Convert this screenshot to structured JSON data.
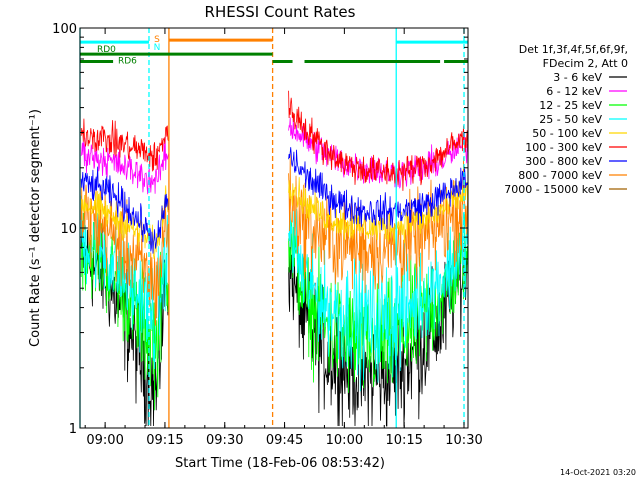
{
  "chart_data": {
    "type": "line",
    "title": "RHESSI Count Rates",
    "xlabel": "Start Time (18-Feb-06 08:53:42)",
    "ylabel": "Count Rate (s⁻¹ detector segment⁻¹)",
    "y_scale": "log",
    "ylim": [
      1,
      100
    ],
    "y_ticks": [
      "1",
      "10",
      "100"
    ],
    "xlim": [
      "08:53:42",
      "10:31:00"
    ],
    "x_ticks": [
      "09:00",
      "09:15",
      "09:30",
      "09:45",
      "10:00",
      "10:15",
      "10:30"
    ],
    "grid": false,
    "legend_position": "top-right outside plot",
    "legend_header": [
      "Det 1f,3f,4f,5f,6f,9f,",
      "FDecim 2, Att 0"
    ],
    "data_gap": [
      "09:16",
      "09:46"
    ],
    "series": [
      {
        "name": "3 - 6 keV",
        "color": "#000000",
        "x": [
          "08:54",
          "09:00",
          "09:05",
          "09:10",
          "09:13",
          "09:15",
          "09:46",
          "09:50",
          "09:55",
          "10:00",
          "10:05",
          "10:10",
          "10:15",
          "10:20",
          "10:25",
          "10:30"
        ],
        "y": [
          7.5,
          5.5,
          3.6,
          2.0,
          1.5,
          5.0,
          6.5,
          3.3,
          2.4,
          2.0,
          1.8,
          1.8,
          2.1,
          2.6,
          3.6,
          6.0
        ]
      },
      {
        "name": "6 - 12 keV",
        "color": "#ff00ff",
        "x": [
          "08:54",
          "09:00",
          "09:05",
          "09:10",
          "09:13",
          "09:15",
          "09:46",
          "09:50",
          "09:55",
          "10:00",
          "10:05",
          "10:10",
          "10:15",
          "10:20",
          "10:25",
          "10:30"
        ],
        "y": [
          24,
          22,
          20,
          18,
          17,
          23,
          33,
          28,
          24,
          21,
          20,
          19,
          19,
          20,
          22,
          26
        ]
      },
      {
        "name": "12 - 25 keV",
        "color": "#00ff00",
        "x": [
          "08:54",
          "09:00",
          "09:05",
          "09:10",
          "09:13",
          "09:15",
          "09:46",
          "09:50",
          "09:55",
          "10:00",
          "10:05",
          "10:10",
          "10:15",
          "10:20",
          "10:25",
          "10:30"
        ],
        "y": [
          8.5,
          6.5,
          4.5,
          3.2,
          2.6,
          6.0,
          9.0,
          4.5,
          3.2,
          2.8,
          2.6,
          2.6,
          3.0,
          3.6,
          4.6,
          7.0
        ]
      },
      {
        "name": "25 - 50 keV",
        "color": "#00ffff",
        "x": [
          "08:54",
          "09:00",
          "09:05",
          "09:10",
          "09:13",
          "09:15",
          "09:46",
          "09:50",
          "09:55",
          "10:00",
          "10:05",
          "10:10",
          "10:15",
          "10:20",
          "10:25",
          "10:30"
        ],
        "y": [
          9.0,
          7.5,
          5.5,
          4.2,
          3.5,
          7.0,
          10.0,
          5.5,
          4.2,
          3.7,
          3.5,
          3.5,
          3.9,
          4.6,
          5.8,
          8.5
        ]
      },
      {
        "name": "50 - 100 keV",
        "color": "#ffd700",
        "x": [
          "08:54",
          "09:00",
          "09:05",
          "09:10",
          "09:13",
          "09:15",
          "09:46",
          "09:50",
          "09:55",
          "10:00",
          "10:05",
          "10:10",
          "10:15",
          "10:20",
          "10:25",
          "10:30"
        ],
        "y": [
          13.5,
          12,
          10.5,
          9,
          8,
          14,
          17,
          13.5,
          11.5,
          10.5,
          10,
          10,
          10.5,
          11,
          12.5,
          15
        ]
      },
      {
        "name": "100 - 300 keV",
        "color": "#ff0000",
        "x": [
          "08:54",
          "09:00",
          "09:05",
          "09:10",
          "09:13",
          "09:15",
          "09:46",
          "09:50",
          "09:55",
          "10:00",
          "10:05",
          "10:10",
          "10:15",
          "10:20",
          "10:25",
          "10:30"
        ],
        "y": [
          30,
          28,
          26,
          24,
          22,
          30,
          40,
          32,
          25,
          21,
          19.5,
          19,
          19,
          20.5,
          24,
          28
        ]
      },
      {
        "name": "300 - 800 keV",
        "color": "#0000ff",
        "x": [
          "08:54",
          "09:00",
          "09:05",
          "09:10",
          "09:13",
          "09:15",
          "09:46",
          "09:50",
          "09:55",
          "10:00",
          "10:05",
          "10:10",
          "10:15",
          "10:20",
          "10:25",
          "10:30"
        ],
        "y": [
          17,
          15.5,
          13,
          10,
          8.2,
          13,
          23,
          18.5,
          15,
          13,
          12.2,
          12,
          12.2,
          13,
          14.5,
          17
        ]
      },
      {
        "name": "800 - 7000 keV",
        "color": "#ff8000",
        "x": [
          "08:54",
          "09:00",
          "09:05",
          "09:10",
          "09:13",
          "09:15",
          "09:46",
          "09:50",
          "09:55",
          "10:00",
          "10:05",
          "10:10",
          "10:15",
          "10:20",
          "10:25",
          "10:30"
        ],
        "y": [
          11.5,
          10,
          8,
          6,
          5,
          10,
          14,
          10.5,
          9,
          8.3,
          8,
          8,
          8.3,
          9,
          10.5,
          12.5
        ]
      },
      {
        "name": "7000 - 15000 keV",
        "color": "#a06000",
        "x": [],
        "y": []
      }
    ],
    "vertical_markers": [
      {
        "time": "08:53:42",
        "color": "#00ffff",
        "style": "solid"
      },
      {
        "time": "09:11:00",
        "color": "#00ffff",
        "style": "dashed"
      },
      {
        "time": "09:16:00",
        "color": "#ff8000",
        "style": "solid"
      },
      {
        "time": "09:42:00",
        "color": "#ff8000",
        "style": "dashed"
      },
      {
        "time": "10:13:00",
        "color": "#00ffff",
        "style": "solid"
      },
      {
        "time": "10:30:00",
        "color": "#00ffff",
        "style": "dashed"
      }
    ],
    "flag_bars": [
      {
        "label": "",
        "color": "#00ffff",
        "y": 85,
        "segments": [
          [
            "08:53:42",
            "09:11:00"
          ],
          [
            "10:13:00",
            "10:31:00"
          ]
        ]
      },
      {
        "label": "",
        "color": "#ff8000",
        "y": 87,
        "segments": [
          [
            "09:16:00",
            "09:42:00"
          ]
        ]
      },
      {
        "label": "RD0",
        "color": "#008000",
        "y": 74,
        "segments": [
          [
            "08:53:42",
            "09:42:00"
          ]
        ]
      },
      {
        "label": "RD6",
        "color": "#008000",
        "y": 68,
        "segments": [
          [
            "08:53:42",
            "09:02:00"
          ],
          [
            "09:42:00",
            "09:47:00"
          ],
          [
            "09:50:00",
            "10:24:00"
          ],
          [
            "10:25:00",
            "10:31:00"
          ]
        ]
      }
    ],
    "flag_letters": [
      {
        "text": "S",
        "color": "#ff8000"
      },
      {
        "text": "N",
        "color": "#00ffff"
      }
    ]
  },
  "footer": {
    "timestamp": "14-Oct-2021 03:20"
  }
}
